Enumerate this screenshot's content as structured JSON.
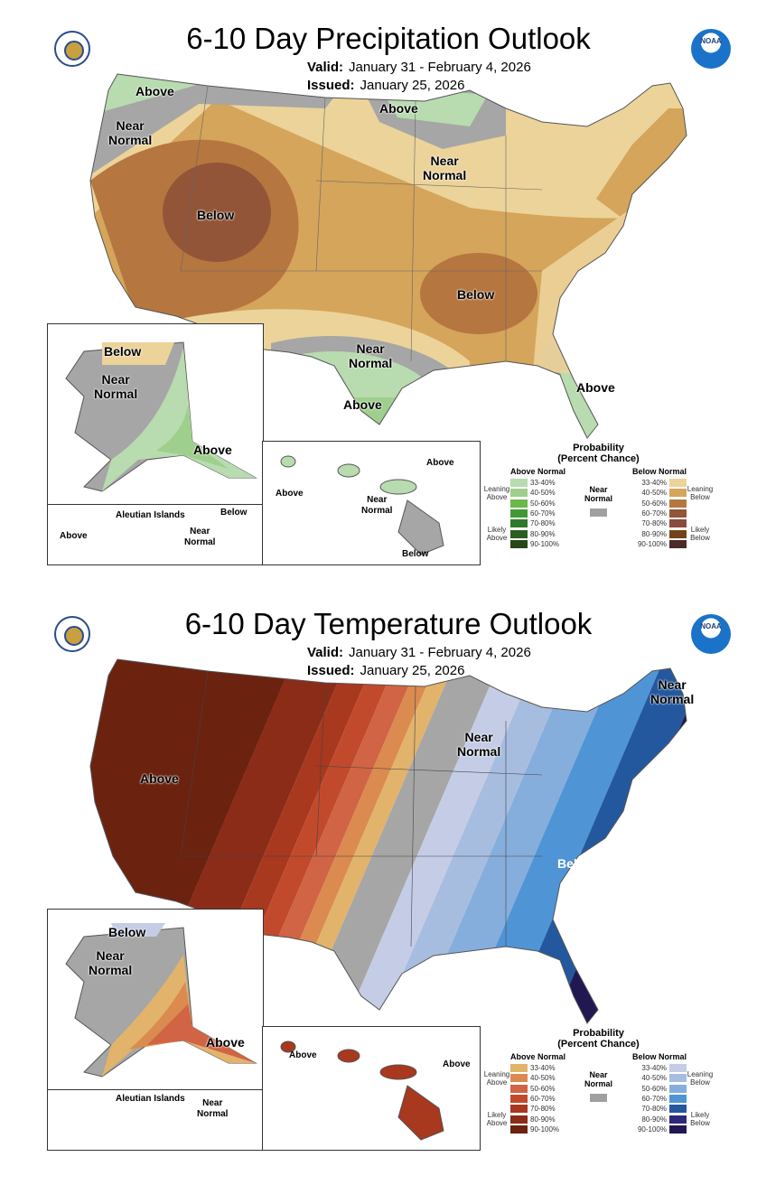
{
  "precip": {
    "title": "6-10 Day Precipitation Outlook",
    "valid_label": "Valid:",
    "valid": "January 31 - February 4, 2026",
    "issued_label": "Issued:",
    "issued": "January 25, 2026",
    "labels": {
      "nw_above": "Above",
      "nw_near": "Near\nNormal",
      "w_below": "Below",
      "n_above": "Above",
      "gl_near": "Near\nNormal",
      "s_below": "Below",
      "tx_near": "Near\nNormal",
      "tx_above": "Above",
      "fl_above": "Above",
      "ak_below": "Below",
      "ak_near": "Near\nNormal",
      "ak_above": "Above",
      "aleutian": "Aleutian Islands",
      "al_above": "Above",
      "al_below": "Below",
      "al_near": "Near\nNormal",
      "hi_above1": "Above",
      "hi_above2": "Above",
      "hi_near": "Near\nNormal",
      "hi_below": "Below"
    }
  },
  "temp": {
    "title": "6-10 Day Temperature Outlook",
    "valid_label": "Valid:",
    "valid": "January 31 - February 4, 2026",
    "issued_label": "Issued:",
    "issued": "January 25, 2026",
    "labels": {
      "w_above": "Above",
      "ne_near": "Near\nNormal",
      "gl_near": "Near\nNormal",
      "se_below": "Below",
      "ak_below": "Below",
      "ak_near": "Near\nNormal",
      "ak_above": "Above",
      "aleutian": "Aleutian Islands",
      "al_near": "Near\nNormal",
      "hi_above1": "Above",
      "hi_above2": "Above"
    }
  },
  "legend": {
    "title": "Probability",
    "subtitle": "(Percent Chance)",
    "above_header": "Above Normal",
    "below_header": "Below Normal",
    "near": "Near Normal",
    "leaning_above": "Leaning Above",
    "likely_above": "Likely Above",
    "leaning_below": "Leaning Below",
    "likely_below": "Likely Below",
    "ranges": [
      "33-40%",
      "40-50%",
      "50-60%",
      "60-70%",
      "70-80%",
      "80-90%",
      "90-100%"
    ]
  },
  "colors": {
    "precip_above": [
      "#b8dbb0",
      "#9fcf8c",
      "#6bb84a",
      "#3f9a35",
      "#2f7a2a",
      "#2c5e22",
      "#27461a"
    ],
    "precip_below": [
      "#ecd399",
      "#d4a55a",
      "#b67640",
      "#925538",
      "#8a4a3e",
      "#74411b",
      "#4b2a27"
    ],
    "temp_above": [
      "#e2b36b",
      "#db8a50",
      "#d06445",
      "#c24a2c",
      "#a8381e",
      "#8a2c17",
      "#6b220f"
    ],
    "temp_below": [
      "#c5cde6",
      "#a7bde0",
      "#86aedd",
      "#4f95d6",
      "#24589e",
      "#2d2a78",
      "#211851"
    ],
    "near": "#a6a6a6"
  }
}
